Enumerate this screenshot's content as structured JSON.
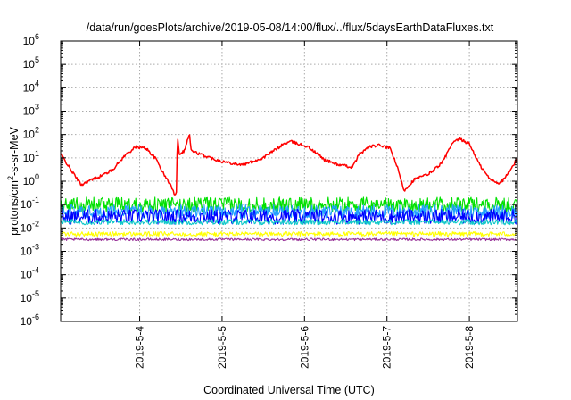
{
  "chart_data": {
    "type": "line",
    "title": "/data/run/goesPlots/archive/2019-05-08/14:00/flux/../flux/5daysEarthDataFluxes.txt",
    "xlabel": "Coordinated Universal Time (UTC)",
    "ylabel": "protons/cm2-s-sr-MeV",
    "ylabel_parts": {
      "pre": "protons/cm",
      "sup": "2",
      "post": "-s-sr-MeV"
    },
    "y_scale": "log",
    "ylim": [
      1e-06,
      1000000.0
    ],
    "y_ticks": [
      {
        "value": 1e-06,
        "label": "10",
        "exp": "-6"
      },
      {
        "value": 1e-05,
        "label": "10",
        "exp": "-5"
      },
      {
        "value": 0.0001,
        "label": "10",
        "exp": "-4"
      },
      {
        "value": 0.001,
        "label": "10",
        "exp": "-3"
      },
      {
        "value": 0.01,
        "label": "10",
        "exp": "-2"
      },
      {
        "value": 0.1,
        "label": "10",
        "exp": "-1"
      },
      {
        "value": 1.0,
        "label": "10",
        "exp": "0"
      },
      {
        "value": 10.0,
        "label": "10",
        "exp": "1"
      },
      {
        "value": 100.0,
        "label": "10",
        "exp": "2"
      },
      {
        "value": 1000.0,
        "label": "10",
        "exp": "3"
      },
      {
        "value": 10000.0,
        "label": "10",
        "exp": "4"
      },
      {
        "value": 100000.0,
        "label": "10",
        "exp": "5"
      },
      {
        "value": 1000000.0,
        "label": "10",
        "exp": "6"
      }
    ],
    "x_range": [
      "2019-05-03T01:00",
      "2019-05-08T14:00"
    ],
    "x_ticks": [
      "2019-5-4",
      "2019-5-5",
      "2019-5-6",
      "2019-5-7",
      "2019-5-8"
    ],
    "grid": true,
    "legend": "none",
    "series": [
      {
        "color": "#ff0000",
        "noise": 0.06,
        "points": [
          [
            "2019-05-03T01:00",
            15
          ],
          [
            "2019-05-03T04:00",
            3
          ],
          [
            "2019-05-03T07:00",
            0.7
          ],
          [
            "2019-05-03T09:00",
            1.0
          ],
          [
            "2019-05-03T12:00",
            1.5
          ],
          [
            "2019-05-03T16:00",
            3
          ],
          [
            "2019-05-03T20:00",
            14
          ],
          [
            "2019-05-03T23:00",
            30
          ],
          [
            "2019-05-04T02:00",
            25
          ],
          [
            "2019-05-04T05:00",
            8
          ],
          [
            "2019-05-04T07:00",
            2
          ],
          [
            "2019-05-04T09:00",
            0.7
          ],
          [
            "2019-05-04T10:00",
            0.3
          ],
          [
            "2019-05-04T10:40",
            0.3
          ],
          [
            "2019-05-04T11:00",
            100
          ],
          [
            "2019-05-04T11:30",
            15
          ],
          [
            "2019-05-04T13:00",
            20
          ],
          [
            "2019-05-04T14:30",
            110
          ],
          [
            "2019-05-04T15:00",
            20
          ],
          [
            "2019-05-04T19:00",
            12
          ],
          [
            "2019-05-05T00:00",
            7
          ],
          [
            "2019-05-05T06:00",
            5
          ],
          [
            "2019-05-05T12:00",
            10
          ],
          [
            "2019-05-05T18:00",
            40
          ],
          [
            "2019-05-05T20:00",
            50
          ],
          [
            "2019-05-06T01:00",
            30
          ],
          [
            "2019-05-06T06:00",
            8
          ],
          [
            "2019-05-06T10:00",
            5
          ],
          [
            "2019-05-06T14:00",
            4
          ],
          [
            "2019-05-06T16:00",
            15
          ],
          [
            "2019-05-06T19:00",
            30
          ],
          [
            "2019-05-06T22:00",
            35
          ],
          [
            "2019-05-07T01:00",
            25
          ],
          [
            "2019-05-07T03:00",
            4
          ],
          [
            "2019-05-07T05:00",
            0.4
          ],
          [
            "2019-05-07T08:00",
            1.2
          ],
          [
            "2019-05-07T12:00",
            2
          ],
          [
            "2019-05-07T16:00",
            6
          ],
          [
            "2019-05-07T19:00",
            40
          ],
          [
            "2019-05-07T21:00",
            65
          ],
          [
            "2019-05-08T00:00",
            40
          ],
          [
            "2019-05-08T03:00",
            5
          ],
          [
            "2019-05-08T06:00",
            1.2
          ],
          [
            "2019-05-08T09:00",
            0.8
          ],
          [
            "2019-05-08T12:00",
            3
          ],
          [
            "2019-05-08T14:00",
            10
          ]
        ]
      },
      {
        "color": "#00e000",
        "noise": 0.32,
        "points": [
          [
            "2019-05-03T01:00",
            0.1
          ],
          [
            "2019-05-08T14:00",
            0.1
          ]
        ]
      },
      {
        "color": "#20a0ff",
        "noise": 0.3,
        "points": [
          [
            "2019-05-03T01:00",
            0.05
          ],
          [
            "2019-05-08T14:00",
            0.05
          ]
        ]
      },
      {
        "color": "#0000ff",
        "noise": 0.32,
        "points": [
          [
            "2019-05-03T01:00",
            0.03
          ],
          [
            "2019-05-08T14:00",
            0.03
          ]
        ]
      },
      {
        "color": "#10c8c8",
        "noise": 0.12,
        "points": [
          [
            "2019-05-03T01:00",
            0.018
          ],
          [
            "2019-05-08T14:00",
            0.018
          ]
        ]
      },
      {
        "color": "#ffff00",
        "noise": 0.1,
        "points": [
          [
            "2019-05-03T01:00",
            0.0055
          ],
          [
            "2019-05-08T14:00",
            0.0055
          ]
        ]
      },
      {
        "color": "#993399",
        "noise": 0.05,
        "points": [
          [
            "2019-05-03T01:00",
            0.0032
          ],
          [
            "2019-05-08T14:00",
            0.0032
          ]
        ]
      }
    ]
  }
}
